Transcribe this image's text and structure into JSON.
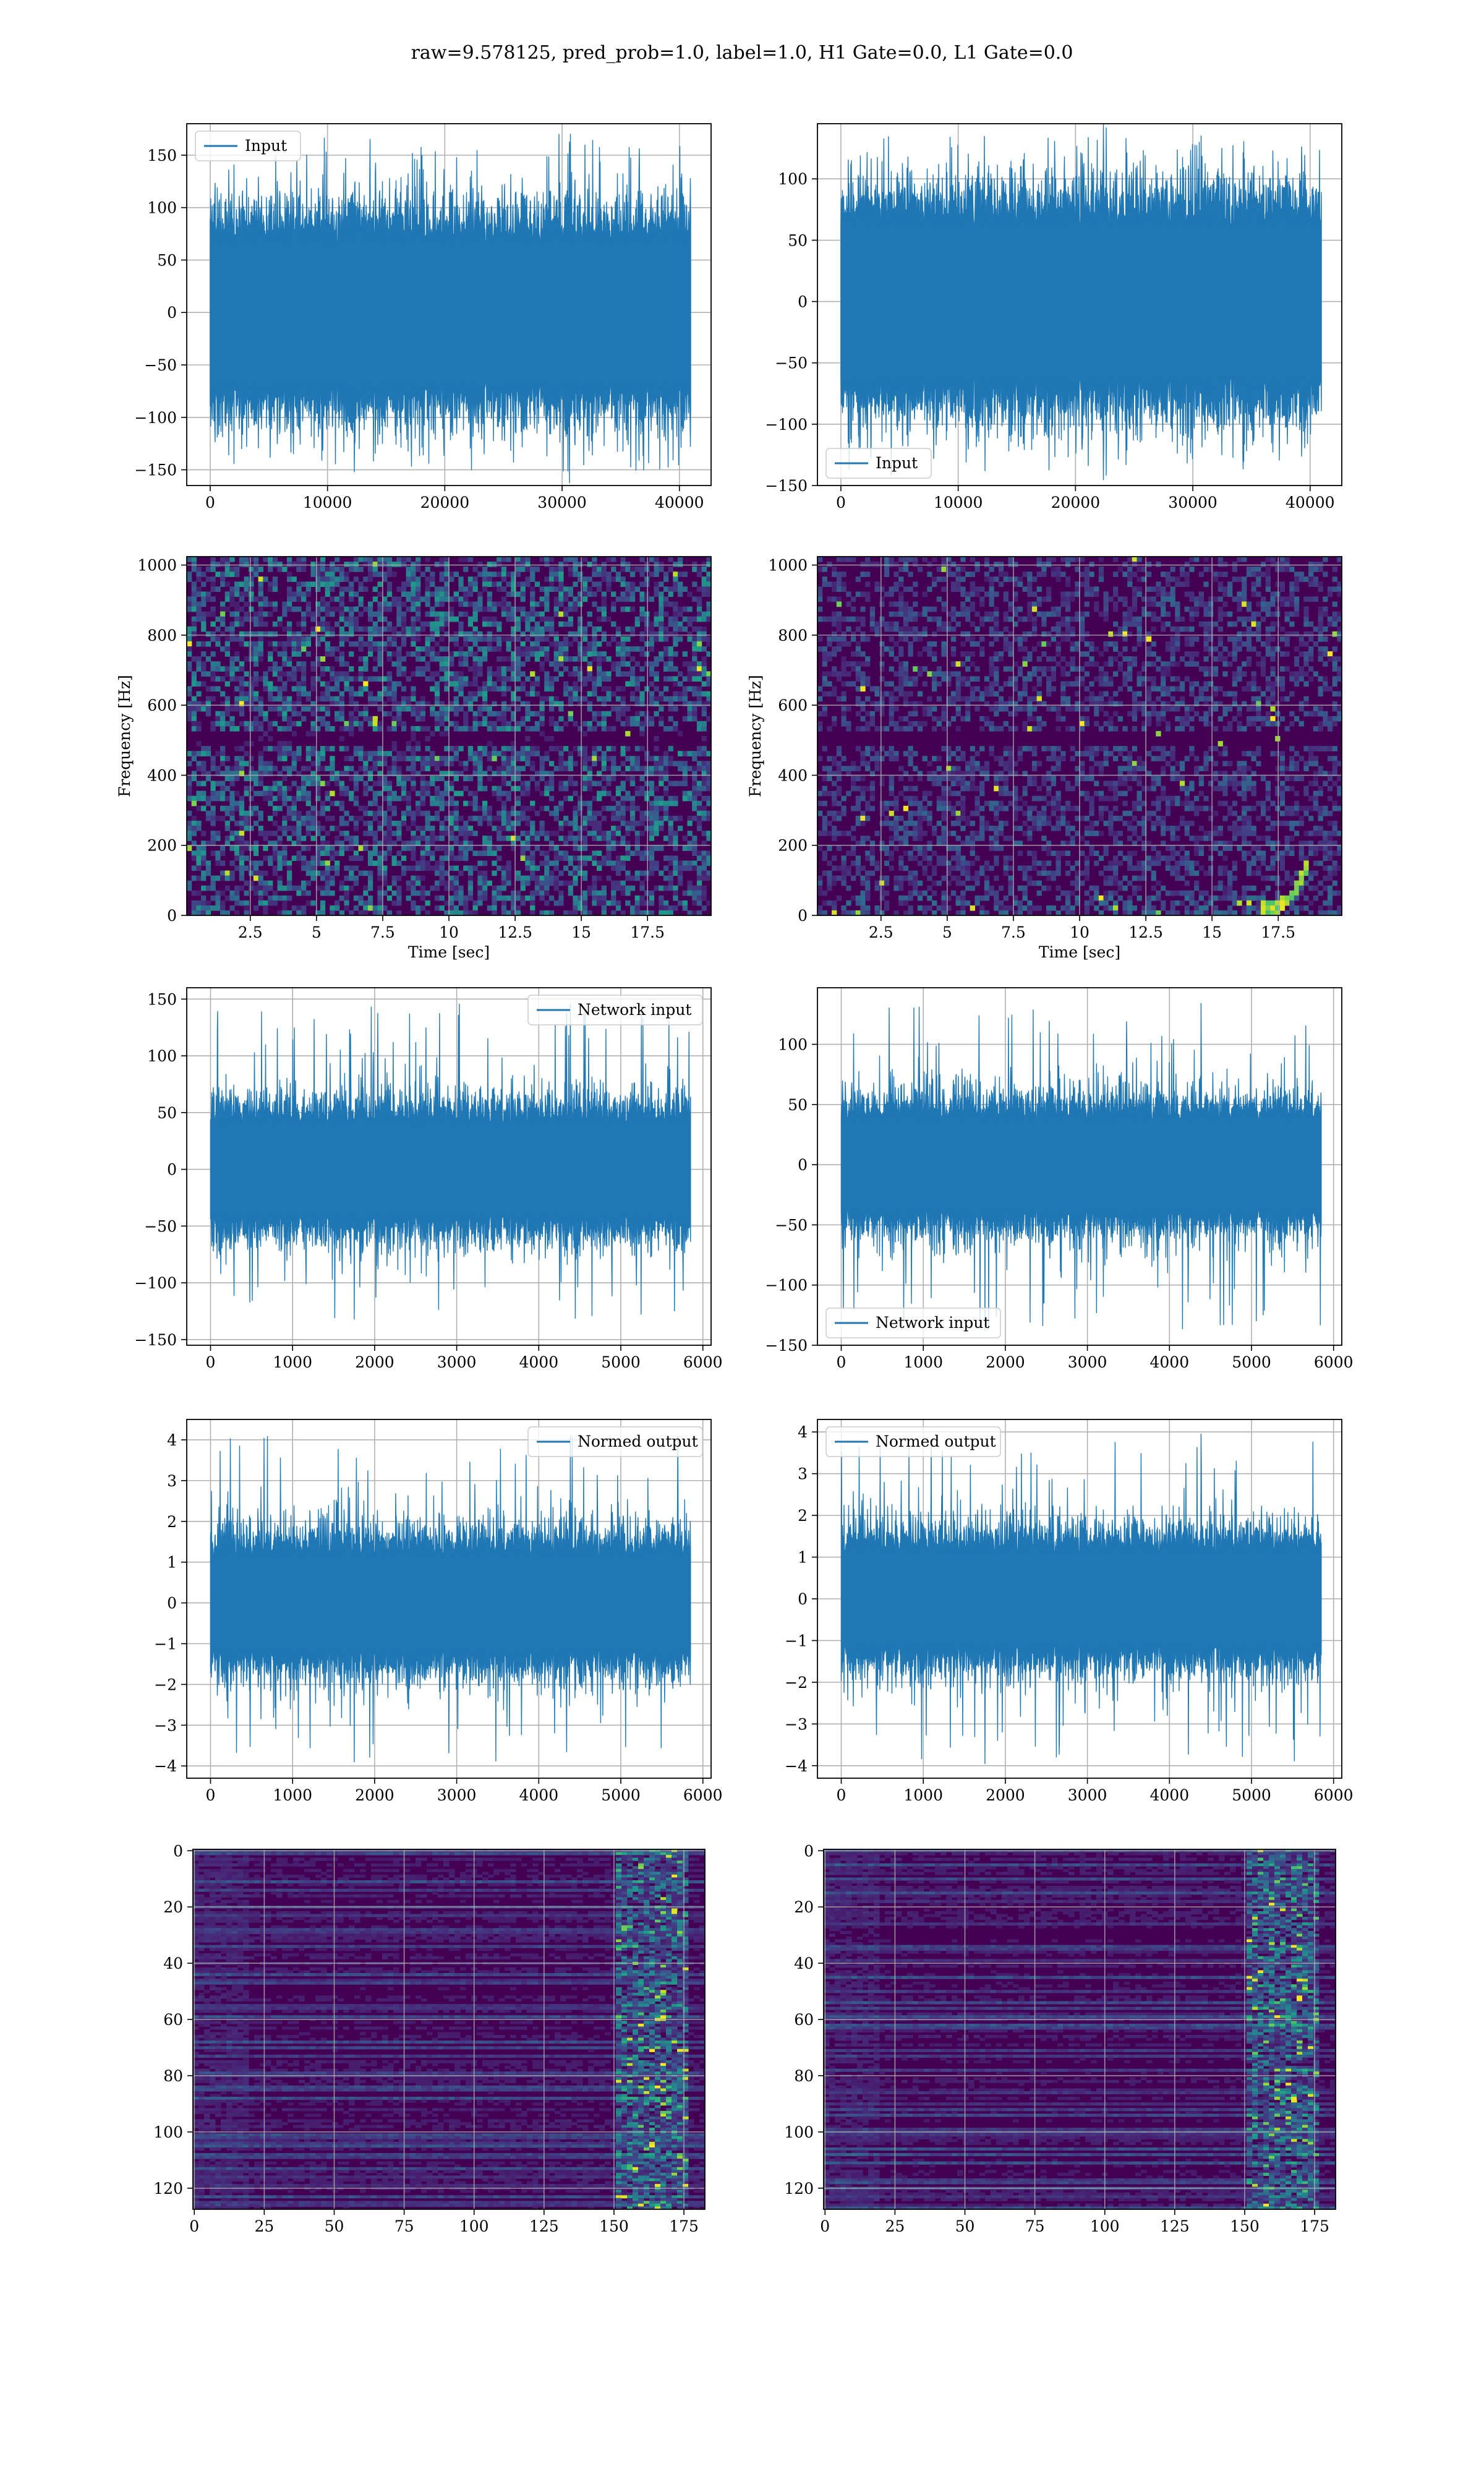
{
  "figure": {
    "title": "raw=9.578125, pred_prob=1.0, label=1.0, H1 Gate=0.0, L1 Gate=0.0"
  },
  "colors": {
    "line": "#1f77b4",
    "grid": "#b0b0b0",
    "viridis": [
      "#440154",
      "#482878",
      "#3e4989",
      "#31688e",
      "#26828e",
      "#1f9e89",
      "#35b779",
      "#6ece58",
      "#b5de2b",
      "#fde725"
    ]
  },
  "chart_data": [
    {
      "id": "r1c1",
      "type": "line",
      "xlabel": "",
      "ylabel": "",
      "xlim": [
        -2000,
        42700
      ],
      "ylim": [
        -165,
        180
      ],
      "xticks": [
        0,
        10000,
        20000,
        30000,
        40000
      ],
      "yticks": [
        -150,
        -100,
        -50,
        0,
        50,
        100,
        150
      ],
      "series": [
        {
          "name": "Input",
          "x_range": [
            0,
            40960
          ],
          "band": 75,
          "spike_max": 170,
          "spike_min": -152
        }
      ],
      "legend": "upper left"
    },
    {
      "id": "r1c2",
      "type": "line",
      "xlabel": "",
      "ylabel": "",
      "xlim": [
        -2000,
        42700
      ],
      "ylim": [
        -150,
        145
      ],
      "xticks": [
        0,
        10000,
        20000,
        30000,
        40000
      ],
      "yticks": [
        -150,
        -100,
        -50,
        0,
        50,
        100
      ],
      "series": [
        {
          "name": "Input",
          "x_range": [
            0,
            40960
          ],
          "band": 70,
          "spike_max": 135,
          "spike_min": -138
        }
      ],
      "legend": "lower left"
    },
    {
      "id": "r2c1",
      "type": "heatmap",
      "xlabel": "Time [sec]",
      "ylabel": "Frequency [Hz]",
      "xlim": [
        0.1,
        19.9
      ],
      "ylim": [
        0,
        1024
      ],
      "xticks": [
        2.5,
        5.0,
        7.5,
        10.0,
        12.5,
        15.0,
        17.5
      ],
      "yticks": [
        0,
        200,
        400,
        600,
        800,
        1000
      ],
      "note": "spectrogram of noisy strain, uniform speckle"
    },
    {
      "id": "r2c2",
      "type": "heatmap",
      "xlabel": "Time [sec]",
      "ylabel": "Frequency [Hz]",
      "xlim": [
        0.1,
        19.9
      ],
      "ylim": [
        0,
        1024
      ],
      "xticks": [
        2.5,
        5.0,
        7.5,
        10.0,
        12.5,
        15.0,
        17.5
      ],
      "yticks": [
        0,
        200,
        400,
        600,
        800,
        1000
      ],
      "note": "spectrogram with chirp near 17.5-18.5 s, 20-150 Hz"
    },
    {
      "id": "r3c1",
      "type": "line",
      "xlabel": "",
      "ylabel": "",
      "xlim": [
        -290,
        6100
      ],
      "ylim": [
        -155,
        160
      ],
      "xticks": [
        0,
        1000,
        2000,
        3000,
        4000,
        5000,
        6000
      ],
      "yticks": [
        -150,
        -100,
        -50,
        0,
        50,
        100,
        150
      ],
      "series": [
        {
          "name": "Network input",
          "x_range": [
            0,
            5850
          ],
          "band": 45,
          "spike_max": 146,
          "spike_min": -132
        }
      ],
      "legend": "upper right"
    },
    {
      "id": "r3c2",
      "type": "line",
      "xlabel": "",
      "ylabel": "",
      "xlim": [
        -290,
        6100
      ],
      "ylim": [
        -150,
        147
      ],
      "xticks": [
        0,
        1000,
        2000,
        3000,
        4000,
        5000,
        6000
      ],
      "yticks": [
        -150,
        -100,
        -50,
        0,
        50,
        100
      ],
      "series": [
        {
          "name": "Network input",
          "x_range": [
            0,
            5850
          ],
          "band": 42,
          "spike_max": 134,
          "spike_min": -138
        }
      ],
      "legend": "lower left"
    },
    {
      "id": "r4c1",
      "type": "line",
      "xlabel": "",
      "ylabel": "",
      "xlim": [
        -290,
        6100
      ],
      "ylim": [
        -4.3,
        4.5
      ],
      "xticks": [
        0,
        1000,
        2000,
        3000,
        4000,
        5000,
        6000
      ],
      "yticks": [
        -4,
        -3,
        -2,
        -1,
        0,
        1,
        2,
        3,
        4
      ],
      "series": [
        {
          "name": "Normed output",
          "x_range": [
            0,
            5850
          ],
          "band": 1.3,
          "spike_max": 4.1,
          "spike_min": -3.9
        }
      ],
      "legend": "upper right"
    },
    {
      "id": "r4c2",
      "type": "line",
      "xlabel": "",
      "ylabel": "",
      "xlim": [
        -290,
        6100
      ],
      "ylim": [
        -4.3,
        4.3
      ],
      "xticks": [
        0,
        1000,
        2000,
        3000,
        4000,
        5000,
        6000
      ],
      "yticks": [
        -4,
        -3,
        -2,
        -1,
        0,
        1,
        2,
        3,
        4
      ],
      "series": [
        {
          "name": "Normed output",
          "x_range": [
            0,
            5850
          ],
          "band": 1.25,
          "spike_max": 3.95,
          "spike_min": -3.95
        }
      ],
      "legend": "upper left"
    },
    {
      "id": "r5c1",
      "type": "heatmap",
      "xlabel": "",
      "ylabel": "",
      "xlim": [
        -0.5,
        182.5
      ],
      "ylim": [
        -0.5,
        127.5
      ],
      "y_inverted": true,
      "xticks": [
        0,
        25,
        50,
        75,
        100,
        125,
        150,
        175
      ],
      "yticks": [
        0,
        20,
        40,
        60,
        80,
        100,
        120
      ],
      "note": "feature map, bright activations near columns 155-175"
    },
    {
      "id": "r5c2",
      "type": "heatmap",
      "xlabel": "",
      "ylabel": "",
      "xlim": [
        -0.5,
        182.5
      ],
      "ylim": [
        -0.5,
        127.5
      ],
      "y_inverted": true,
      "xticks": [
        0,
        25,
        50,
        75,
        100,
        125,
        150,
        175
      ],
      "yticks": [
        0,
        20,
        40,
        60,
        80,
        100,
        120
      ],
      "note": "feature map, bright activations near columns 160-175"
    }
  ]
}
